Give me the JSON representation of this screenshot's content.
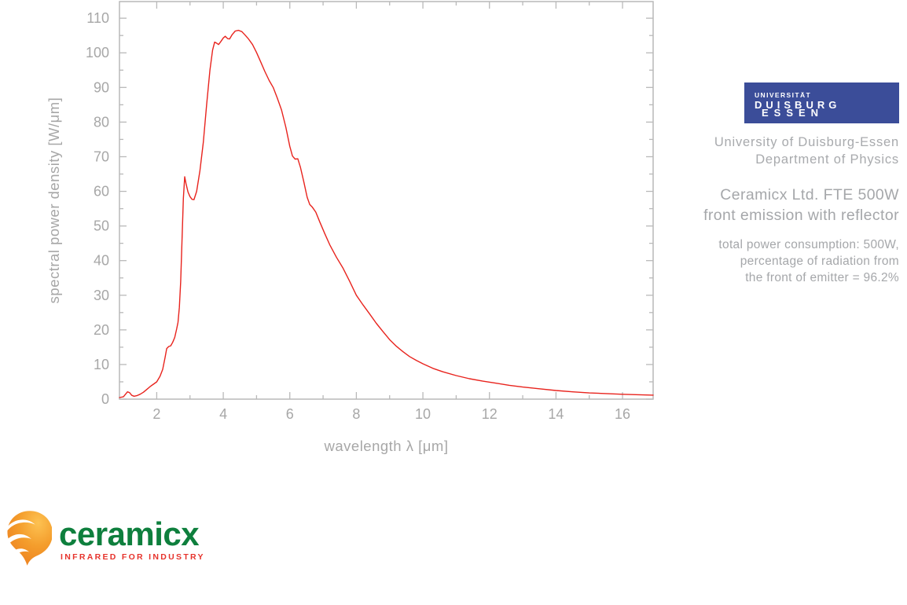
{
  "page": {
    "background": "#ffffff"
  },
  "chart_data": {
    "type": "line",
    "title": "",
    "xlabel": "wavelength λ [μm]",
    "ylabel": "spectral power density [W/μm]",
    "xlim": [
      0.88,
      16.92
    ],
    "ylim": [
      0,
      114.8
    ],
    "x_major_ticks": [
      2,
      4,
      6,
      8,
      10,
      12,
      14,
      16
    ],
    "x_minor_ticks": [
      3,
      5,
      7,
      9,
      11,
      13,
      15
    ],
    "y_major_ticks": [
      0,
      10,
      20,
      30,
      40,
      50,
      60,
      70,
      80,
      90,
      100,
      110
    ],
    "y_minor_ticks": [
      5,
      15,
      25,
      35,
      45,
      55,
      65,
      75,
      85,
      95,
      105
    ],
    "grid": false,
    "frame": true,
    "legend": "none",
    "line_color": "#e8231d",
    "axis_color": "#b9b9b9",
    "label_color": "#a7a7a7",
    "series": [
      {
        "name": "Ceramicx FTE 500W front emission with reflector",
        "points": [
          [
            0.88,
            0.45
          ],
          [
            1.0,
            0.7
          ],
          [
            1.05,
            1.3
          ],
          [
            1.12,
            2.1
          ],
          [
            1.18,
            1.9
          ],
          [
            1.25,
            1.1
          ],
          [
            1.32,
            0.85
          ],
          [
            1.4,
            1.0
          ],
          [
            1.5,
            1.4
          ],
          [
            1.6,
            2.0
          ],
          [
            1.7,
            2.8
          ],
          [
            1.8,
            3.6
          ],
          [
            1.9,
            4.3
          ],
          [
            2.0,
            5.0
          ],
          [
            2.1,
            6.6
          ],
          [
            2.18,
            8.6
          ],
          [
            2.25,
            12.0
          ],
          [
            2.3,
            14.6
          ],
          [
            2.36,
            15.2
          ],
          [
            2.42,
            15.4
          ],
          [
            2.48,
            16.4
          ],
          [
            2.54,
            17.8
          ],
          [
            2.6,
            20.3
          ],
          [
            2.64,
            22.2
          ],
          [
            2.68,
            26.5
          ],
          [
            2.72,
            34.0
          ],
          [
            2.76,
            46.0
          ],
          [
            2.8,
            58.0
          ],
          [
            2.84,
            64.2
          ],
          [
            2.88,
            62.2
          ],
          [
            2.94,
            59.8
          ],
          [
            3.0,
            58.5
          ],
          [
            3.06,
            57.7
          ],
          [
            3.12,
            57.6
          ],
          [
            3.2,
            60.0
          ],
          [
            3.3,
            66.0
          ],
          [
            3.4,
            74.2
          ],
          [
            3.5,
            85.0
          ],
          [
            3.6,
            95.0
          ],
          [
            3.68,
            100.8
          ],
          [
            3.74,
            103.1
          ],
          [
            3.8,
            102.8
          ],
          [
            3.86,
            102.4
          ],
          [
            3.93,
            103.3
          ],
          [
            4.0,
            104.3
          ],
          [
            4.06,
            104.8
          ],
          [
            4.13,
            104.1
          ],
          [
            4.19,
            104.0
          ],
          [
            4.27,
            105.3
          ],
          [
            4.36,
            106.3
          ],
          [
            4.46,
            106.5
          ],
          [
            4.56,
            106.1
          ],
          [
            4.66,
            105.1
          ],
          [
            4.76,
            104.0
          ],
          [
            4.88,
            102.4
          ],
          [
            5.0,
            100.1
          ],
          [
            5.12,
            97.5
          ],
          [
            5.25,
            94.6
          ],
          [
            5.38,
            92.0
          ],
          [
            5.5,
            90.0
          ],
          [
            5.62,
            87.0
          ],
          [
            5.75,
            83.5
          ],
          [
            5.88,
            78.5
          ],
          [
            6.0,
            73.0
          ],
          [
            6.08,
            70.2
          ],
          [
            6.16,
            69.3
          ],
          [
            6.24,
            69.4
          ],
          [
            6.32,
            66.9
          ],
          [
            6.42,
            62.8
          ],
          [
            6.52,
            58.3
          ],
          [
            6.6,
            56.2
          ],
          [
            6.68,
            55.4
          ],
          [
            6.78,
            54.0
          ],
          [
            6.9,
            51.2
          ],
          [
            7.05,
            47.8
          ],
          [
            7.2,
            44.6
          ],
          [
            7.4,
            41.0
          ],
          [
            7.6,
            37.8
          ],
          [
            7.8,
            34.0
          ],
          [
            8.0,
            30.0
          ],
          [
            8.2,
            27.2
          ],
          [
            8.4,
            24.6
          ],
          [
            8.6,
            21.9
          ],
          [
            8.8,
            19.5
          ],
          [
            9.0,
            17.2
          ],
          [
            9.2,
            15.3
          ],
          [
            9.4,
            13.7
          ],
          [
            9.6,
            12.3
          ],
          [
            9.8,
            11.2
          ],
          [
            10.0,
            10.2
          ],
          [
            10.3,
            8.9
          ],
          [
            10.6,
            7.9
          ],
          [
            11.0,
            6.8
          ],
          [
            11.4,
            5.9
          ],
          [
            11.8,
            5.2
          ],
          [
            12.2,
            4.6
          ],
          [
            12.6,
            4.0
          ],
          [
            13.0,
            3.5
          ],
          [
            13.5,
            3.0
          ],
          [
            14.0,
            2.5
          ],
          [
            14.5,
            2.1
          ],
          [
            15.0,
            1.8
          ],
          [
            15.5,
            1.6
          ],
          [
            16.0,
            1.4
          ],
          [
            16.4,
            1.3
          ],
          [
            16.92,
            1.15
          ]
        ]
      }
    ]
  },
  "info_panel": {
    "ude_logo": {
      "bg_color": "#3b4d99",
      "line1": "UNIVERSITÄT",
      "line2": "DUISBURG",
      "line3": "ESSEN"
    },
    "org_lines": [
      "University of Duisburg-Essen",
      "Department of Physics"
    ],
    "title_lines": [
      "Ceramicx Ltd. FTE 500W",
      "front emission with reflector"
    ],
    "detail_lines": [
      "total power consumption: 500W,",
      "percentage of radiation from",
      "the front of emitter = 96.2%"
    ]
  },
  "brand": {
    "name": "ceramicx",
    "tagline": "INFRARED FOR INDUSTRY",
    "name_color": "#0e7f3d",
    "tagline_color": "#e6332c",
    "flame_colors": [
      "#fdc252",
      "#f49d2c",
      "#ec7c1e"
    ]
  }
}
